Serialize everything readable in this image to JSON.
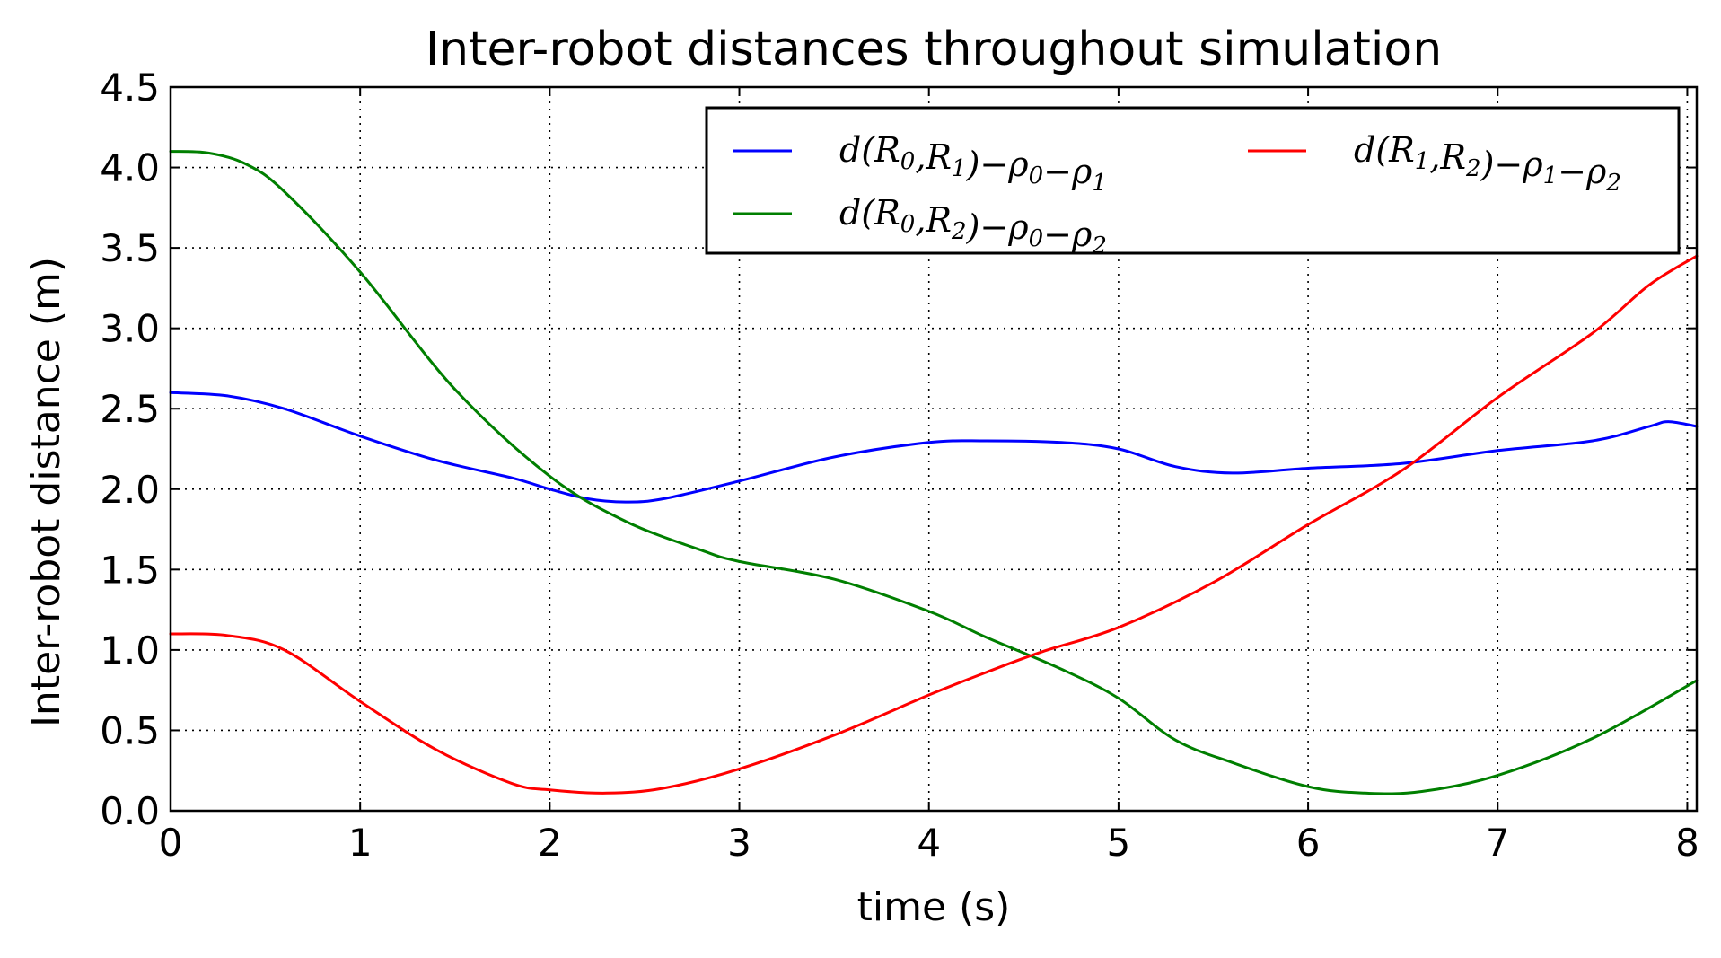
{
  "chart_data": {
    "type": "line",
    "title": "Inter-robot distances throughout simulation",
    "xlabel": "time (s)",
    "ylabel": "Inter-robot distance (m)",
    "xlim": [
      0,
      8.05
    ],
    "ylim": [
      0,
      4.5
    ],
    "xticks": [
      0,
      1,
      2,
      3,
      4,
      5,
      6,
      7,
      8
    ],
    "xtick_labels": [
      "0",
      "1",
      "2",
      "3",
      "4",
      "5",
      "6",
      "7",
      "8"
    ],
    "yticks": [
      0,
      0.5,
      1,
      1.5,
      2,
      2.5,
      3,
      3.5,
      4,
      4.5
    ],
    "ytick_labels": [
      "0.0",
      "0.5",
      "1.0",
      "1.5",
      "2.0",
      "2.5",
      "3.0",
      "3.5",
      "4.0",
      "4.5"
    ],
    "grid": true,
    "legend_position": "top-right",
    "series": [
      {
        "name": "d(R0,R1)−ρ0−ρ1",
        "color": "#0000ff",
        "x": [
          0,
          0.3,
          0.6,
          1.0,
          1.4,
          1.8,
          2.0,
          2.2,
          2.4,
          2.6,
          3.0,
          3.5,
          4.0,
          4.3,
          4.7,
          5.0,
          5.3,
          5.6,
          6.0,
          6.5,
          7.0,
          7.5,
          7.8,
          7.9,
          8.05
        ],
        "y": [
          2.6,
          2.58,
          2.5,
          2.33,
          2.18,
          2.07,
          2.0,
          1.94,
          1.92,
          1.94,
          2.05,
          2.2,
          2.29,
          2.3,
          2.29,
          2.25,
          2.14,
          2.1,
          2.13,
          2.16,
          2.24,
          2.3,
          2.39,
          2.42,
          2.39
        ]
      },
      {
        "name": "d(R0,R2)−ρ0−ρ2",
        "color": "#007f00",
        "x": [
          0,
          0.2,
          0.4,
          0.6,
          1.0,
          1.5,
          2.0,
          2.4,
          2.8,
          3.0,
          3.5,
          4.0,
          4.3,
          4.7,
          5.0,
          5.3,
          5.6,
          6.0,
          6.3,
          6.6,
          7.0,
          7.5,
          8.05
        ],
        "y": [
          4.1,
          4.09,
          4.02,
          3.85,
          3.35,
          2.62,
          2.08,
          1.8,
          1.62,
          1.55,
          1.44,
          1.24,
          1.08,
          0.88,
          0.7,
          0.44,
          0.3,
          0.15,
          0.11,
          0.12,
          0.22,
          0.45,
          0.81
        ]
      },
      {
        "name": "d(R1,R2)−ρ1−ρ2",
        "color": "#ff0000",
        "x": [
          0,
          0.3,
          0.6,
          1.0,
          1.4,
          1.8,
          2.0,
          2.3,
          2.6,
          3.0,
          3.5,
          4.0,
          4.3,
          4.6,
          5.0,
          5.5,
          6.0,
          6.5,
          7.0,
          7.5,
          7.8,
          8.05
        ],
        "y": [
          1.1,
          1.09,
          1.0,
          0.68,
          0.38,
          0.17,
          0.13,
          0.11,
          0.14,
          0.26,
          0.47,
          0.72,
          0.86,
          0.99,
          1.14,
          1.42,
          1.78,
          2.12,
          2.57,
          2.97,
          3.27,
          3.45
        ]
      }
    ],
    "legend_entries": [
      {
        "base": "d(",
        "r_a": "R",
        "r_a_sub": "0",
        "comma": ",",
        "r_b": "R",
        "r_b_sub": "1",
        "close": ")",
        "minus1": "−",
        "rho_a": "ρ",
        "rho_a_sub": "0",
        "minus2": "−",
        "rho_b": "ρ",
        "rho_b_sub": "1"
      },
      {
        "base": "d(",
        "r_a": "R",
        "r_a_sub": "0",
        "comma": ",",
        "r_b": "R",
        "r_b_sub": "2",
        "close": ")",
        "minus1": "−",
        "rho_a": "ρ",
        "rho_a_sub": "0",
        "minus2": "−",
        "rho_b": "ρ",
        "rho_b_sub": "2"
      },
      {
        "base": "d(",
        "r_a": "R",
        "r_a_sub": "1",
        "comma": ",",
        "r_b": "R",
        "r_b_sub": "2",
        "close": ")",
        "minus1": "−",
        "rho_a": "ρ",
        "rho_a_sub": "1",
        "minus2": "−",
        "rho_b": "ρ",
        "rho_b_sub": "2"
      }
    ]
  }
}
